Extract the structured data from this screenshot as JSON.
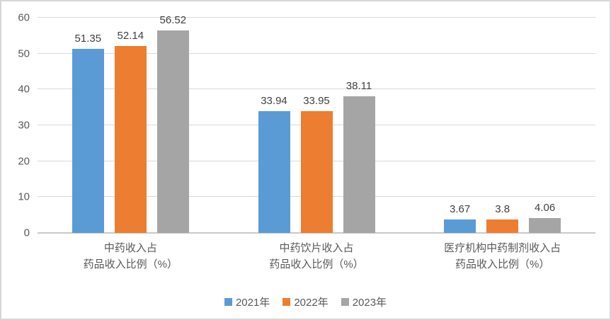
{
  "chart_data": {
    "type": "bar",
    "categories": [
      [
        "中药收入占",
        "药品收入比例（%）"
      ],
      [
        "中药饮片收入占",
        "药品收入比例（%）"
      ],
      [
        "医疗机构中药制剂收入占",
        "药品收入比例（%）"
      ]
    ],
    "series": [
      {
        "name": "2021年",
        "color": "#5B9BD5",
        "values": [
          51.35,
          33.94,
          3.67
        ],
        "labels": [
          "51.35",
          "33.94",
          "3.67"
        ]
      },
      {
        "name": "2022年",
        "color": "#ED7D31",
        "values": [
          52.14,
          33.95,
          3.8
        ],
        "labels": [
          "52.14",
          "33.95",
          "3.8"
        ]
      },
      {
        "name": "2023年",
        "color": "#A5A5A5",
        "values": [
          56.52,
          38.11,
          4.06
        ],
        "labels": [
          "56.52",
          "38.11",
          "4.06"
        ]
      }
    ],
    "title": "",
    "xlabel": "",
    "ylabel": "",
    "ylim": [
      0,
      60
    ],
    "yticks": [
      0,
      10,
      20,
      30,
      40,
      50,
      60
    ],
    "grid": true,
    "legend_position": "bottom",
    "colors": {
      "gridline": "#d9d9d9",
      "axis_text": "#595959",
      "data_label_text": "#404040"
    }
  }
}
